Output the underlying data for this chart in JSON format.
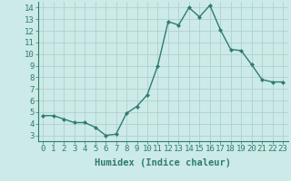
{
  "x": [
    0,
    1,
    2,
    3,
    4,
    5,
    6,
    7,
    8,
    9,
    10,
    11,
    12,
    13,
    14,
    15,
    16,
    17,
    18,
    19,
    20,
    21,
    22,
    23
  ],
  "y": [
    4.7,
    4.7,
    4.4,
    4.1,
    4.1,
    3.7,
    3.0,
    3.1,
    4.9,
    5.5,
    6.5,
    9.0,
    12.8,
    12.5,
    14.0,
    13.2,
    14.2,
    12.1,
    10.4,
    10.3,
    9.1,
    7.8,
    7.6,
    7.6
  ],
  "line_color": "#2e7d6e",
  "marker": "D",
  "marker_size": 2.0,
  "bg_color": "#cceae7",
  "grid_color": "#b0d0ce",
  "xlabel": "Humidex (Indice chaleur)",
  "xlim": [
    -0.5,
    23.5
  ],
  "ylim": [
    2.5,
    14.5
  ],
  "xticks": [
    0,
    1,
    2,
    3,
    4,
    5,
    6,
    7,
    8,
    9,
    10,
    11,
    12,
    13,
    14,
    15,
    16,
    17,
    18,
    19,
    20,
    21,
    22,
    23
  ],
  "yticks": [
    3,
    4,
    5,
    6,
    7,
    8,
    9,
    10,
    11,
    12,
    13,
    14
  ],
  "xlabel_fontsize": 7.5,
  "tick_fontsize": 6.5,
  "line_width": 1.0
}
